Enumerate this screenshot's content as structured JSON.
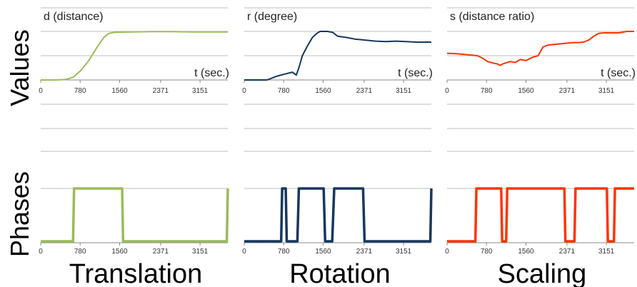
{
  "row_labels": {
    "values": "Values",
    "phases": "Phases"
  },
  "colors": {
    "translation": "#9bbb59",
    "rotation": "#17375e",
    "scaling": "#ff3300",
    "grid": "#bdbdbd"
  },
  "chart_data": [
    {
      "type": "line",
      "panel": "values-translation",
      "title": "d (distance)",
      "xlabel": "t (sec.)",
      "x_ticks": [
        "0",
        "780",
        "1560",
        "2371",
        "3151"
      ],
      "tick_values": [
        0,
        780,
        1560,
        2371,
        3151
      ],
      "xlim": [
        0,
        3700
      ],
      "ylim": [
        0,
        1
      ],
      "series": [
        {
          "x": [
            0,
            300,
            500,
            650,
            800,
            950,
            1100,
            1250,
            1350,
            1450,
            1600,
            1800,
            2200,
            2600,
            3000,
            3400,
            3700
          ],
          "y": [
            0.0,
            0.0,
            0.01,
            0.06,
            0.2,
            0.4,
            0.65,
            0.88,
            0.96,
            0.98,
            0.985,
            0.99,
            0.995,
            0.995,
            0.99,
            0.99,
            0.99
          ]
        }
      ]
    },
    {
      "type": "line",
      "panel": "values-rotation",
      "title": "r (degree)",
      "xlabel": "t (sec.)",
      "x_ticks": [
        "0",
        "780",
        "1560",
        "2371",
        "3151"
      ],
      "tick_values": [
        0,
        780,
        1560,
        2371,
        3151
      ],
      "xlim": [
        0,
        3700
      ],
      "ylim": [
        0,
        1
      ],
      "series": [
        {
          "x": [
            0,
            450,
            650,
            800,
            950,
            1030,
            1080,
            1150,
            1250,
            1350,
            1450,
            1500,
            1650,
            1750,
            1850,
            2000,
            2200,
            2400,
            2600,
            2800,
            3000,
            3200,
            3400,
            3700
          ],
          "y": [
            0.0,
            0.0,
            0.08,
            0.12,
            0.16,
            0.1,
            0.25,
            0.5,
            0.7,
            0.88,
            0.97,
            1.0,
            1.0,
            0.98,
            0.9,
            0.88,
            0.84,
            0.82,
            0.8,
            0.79,
            0.8,
            0.79,
            0.78,
            0.78
          ]
        }
      ]
    },
    {
      "type": "line",
      "panel": "values-scaling",
      "title": "s (distance ratio)",
      "xlabel": "t (sec.)",
      "x_ticks": [
        "0",
        "780",
        "1560",
        "2371",
        "3151"
      ],
      "tick_values": [
        0,
        780,
        1560,
        2371,
        3151
      ],
      "xlim": [
        0,
        3700
      ],
      "ylim": [
        0,
        1
      ],
      "series": [
        {
          "x": [
            0,
            200,
            400,
            600,
            700,
            800,
            900,
            1000,
            1050,
            1100,
            1250,
            1350,
            1450,
            1560,
            1700,
            1800,
            1900,
            2000,
            2200,
            2400,
            2500,
            2600,
            2700,
            2800,
            2900,
            3000,
            3100,
            3200,
            3400,
            3550,
            3700
          ],
          "y": [
            0.55,
            0.54,
            0.52,
            0.5,
            0.45,
            0.38,
            0.35,
            0.33,
            0.3,
            0.33,
            0.38,
            0.36,
            0.42,
            0.4,
            0.47,
            0.5,
            0.68,
            0.72,
            0.74,
            0.76,
            0.77,
            0.77,
            0.78,
            0.82,
            0.9,
            0.96,
            0.97,
            0.97,
            0.97,
            1.0,
            1.0
          ]
        }
      ]
    },
    {
      "type": "line",
      "panel": "phases-translation",
      "x_ticks": [
        "0",
        "780",
        "1560",
        "2371",
        "3151"
      ],
      "tick_values": [
        0,
        780,
        1560,
        2371,
        3151
      ],
      "xlim": [
        0,
        3700
      ],
      "ylim": [
        0,
        1
      ],
      "series": [
        {
          "x": [
            0,
            640,
            660,
            1610,
            1630,
            3680,
            3700
          ],
          "y": [
            0,
            0,
            1,
            1,
            0,
            0,
            1
          ]
        }
      ]
    },
    {
      "type": "line",
      "panel": "phases-rotation",
      "x_ticks": [
        "0",
        "780",
        "1560",
        "2371",
        "3151"
      ],
      "tick_values": [
        0,
        780,
        1560,
        2371,
        3151
      ],
      "xlim": [
        0,
        3700
      ],
      "ylim": [
        0,
        1
      ],
      "series": [
        {
          "x": [
            0,
            730,
            750,
            820,
            840,
            1050,
            1080,
            1570,
            1600,
            1740,
            1780,
            2350,
            2380,
            3680,
            3700
          ],
          "y": [
            0,
            0,
            1,
            1,
            0,
            0,
            1,
            1,
            0,
            0,
            1,
            1,
            0,
            0,
            1
          ]
        }
      ]
    },
    {
      "type": "line",
      "panel": "phases-scaling",
      "x_ticks": [
        "0",
        "780",
        "1560",
        "2371",
        "3151"
      ],
      "tick_values": [
        0,
        780,
        1560,
        2371,
        3151
      ],
      "xlim": [
        0,
        3700
      ],
      "ylim": [
        0,
        1
      ],
      "series": [
        {
          "x": [
            0,
            560,
            580,
            1070,
            1090,
            1170,
            1190,
            2320,
            2340,
            2520,
            2540,
            3160,
            3180,
            3300,
            3320,
            3700
          ],
          "y": [
            0,
            0,
            1,
            1,
            0,
            0,
            1,
            1,
            0,
            0,
            1,
            1,
            0,
            0,
            1,
            1
          ]
        }
      ]
    }
  ],
  "captions": [
    "Translation",
    "Rotation",
    "Scaling"
  ]
}
